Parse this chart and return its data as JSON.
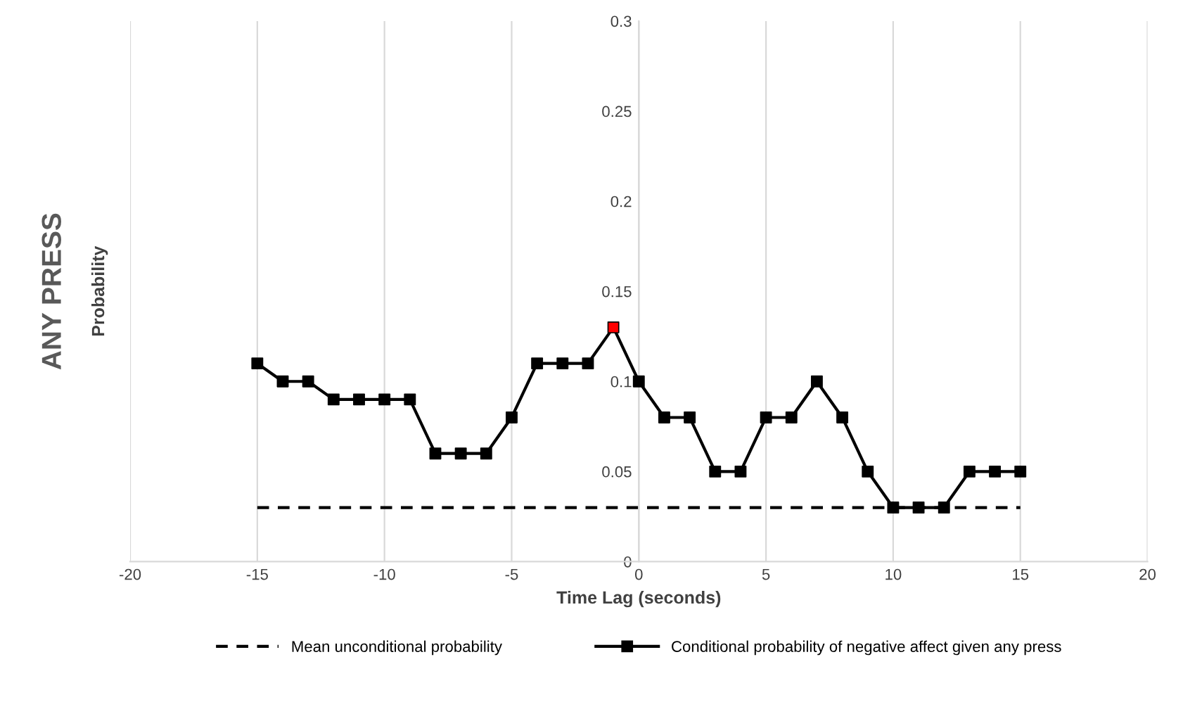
{
  "chart_data": {
    "type": "line",
    "xlabel": "Time Lag (seconds)",
    "ylabel": "Probability",
    "annotations": [
      "ANY PRESS"
    ],
    "series": [
      {
        "name": "Mean unconditional probability",
        "color": "#000000",
        "x": [
          -15,
          15
        ],
        "values": [
          0.03,
          0.03
        ],
        "line_style": "dashed",
        "marker": "none"
      },
      {
        "name": "Conditional probability of negative affect given any press",
        "color": "#000000",
        "x": [
          -15,
          -14,
          -13,
          -12,
          -11,
          -10,
          -9,
          -8,
          -7,
          -6,
          -5,
          -4,
          -3,
          -2,
          -1,
          0,
          1,
          2,
          3,
          4,
          5,
          6,
          7,
          8,
          9,
          10,
          11,
          12,
          13,
          14,
          15
        ],
        "values": [
          0.11,
          0.1,
          0.1,
          0.09,
          0.09,
          0.09,
          0.09,
          0.06,
          0.06,
          0.06,
          0.08,
          0.11,
          0.11,
          0.11,
          0.13,
          0.1,
          0.08,
          0.08,
          0.05,
          0.05,
          0.08,
          0.08,
          0.1,
          0.08,
          0.05,
          0.03,
          0.03,
          0.03,
          0.05,
          0.05,
          0.05
        ],
        "colors": [
          "#000000",
          "#000000",
          "#000000",
          "#000000",
          "#000000",
          "#000000",
          "#000000",
          "#000000",
          "#000000",
          "#000000",
          "#000000",
          "#000000",
          "#000000",
          "#000000",
          "#ff0000",
          "#000000",
          "#000000",
          "#000000",
          "#000000",
          "#000000",
          "#000000",
          "#000000",
          "#000000",
          "#000000",
          "#000000",
          "#000000",
          "#000000",
          "#000000",
          "#000000",
          "#000000",
          "#000000"
        ],
        "line_style": "solid",
        "marker": "square"
      }
    ],
    "xlim": [
      -20,
      20
    ],
    "xticks": [
      -20,
      -15,
      -10,
      -5,
      0,
      5,
      10,
      15,
      20
    ],
    "ylim": [
      0,
      0.3
    ],
    "yticks": [
      0,
      0.05,
      0.1,
      0.15,
      0.2,
      0.25,
      0.3
    ],
    "grid": "x",
    "legend": "bottom"
  }
}
